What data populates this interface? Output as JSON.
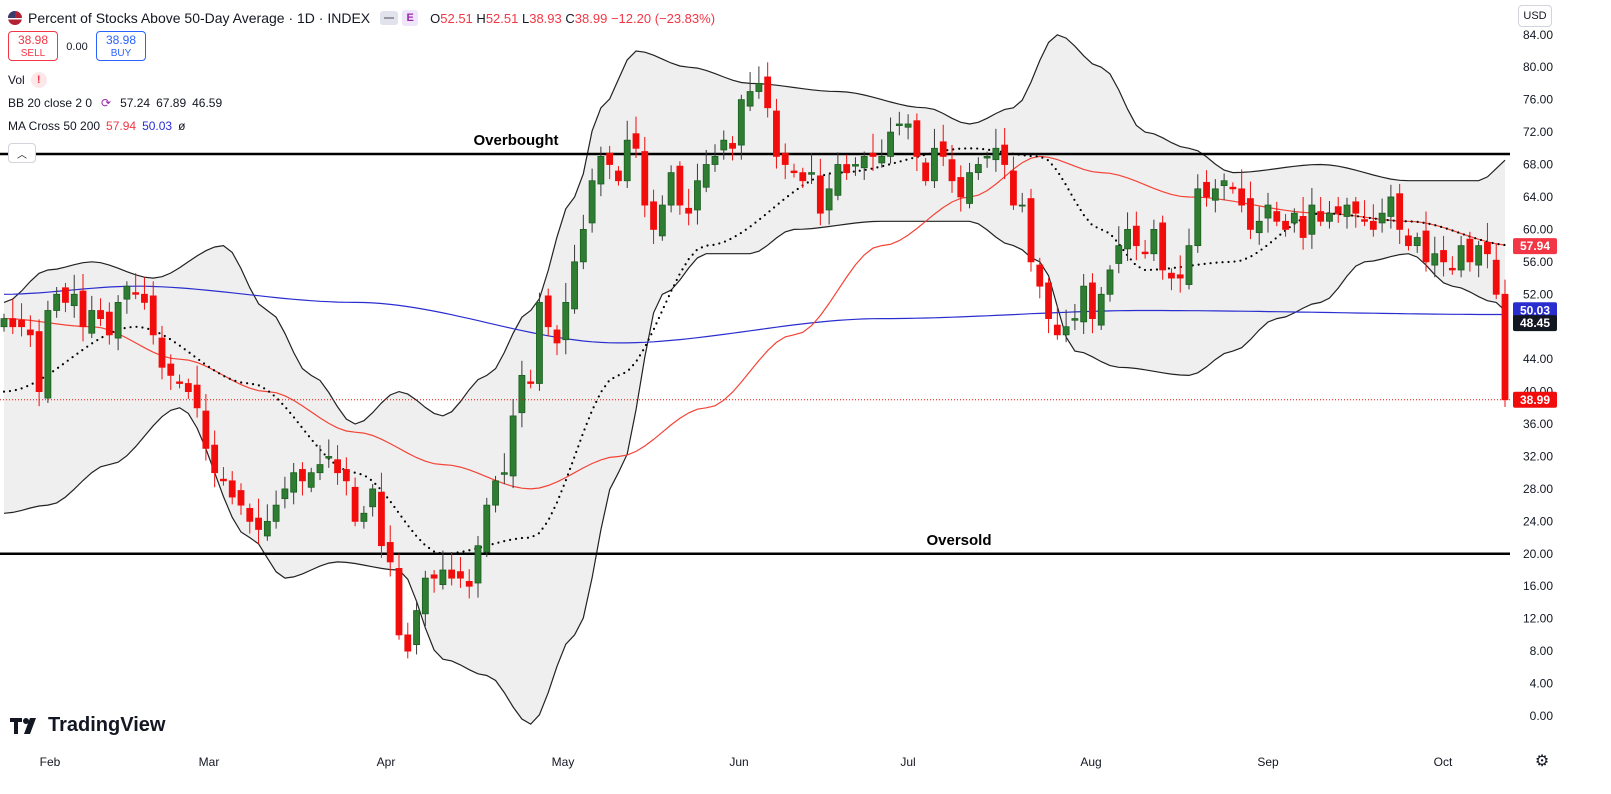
{
  "header": {
    "title": "Percent of Stocks Above 50-Day Average · 1D · INDEX",
    "event_badge": "E",
    "ohlc": {
      "o_label": "O",
      "o": "52.51",
      "h_label": "H",
      "h": "52.51",
      "l_label": "L",
      "l": "38.93",
      "c_label": "C",
      "c": "38.99",
      "change": "−12.20 (−23.83%)"
    },
    "sell_price": "38.98",
    "sell_label": "SELL",
    "spread": "0.00",
    "buy_price": "38.98",
    "buy_label": "BUY"
  },
  "indicators": {
    "vol_label": "Vol",
    "bb_label": "BB 20 close 2 0",
    "bb_basis": "57.24",
    "bb_upper": "67.89",
    "bb_lower": "46.59",
    "ma_label": "MA Cross 50 200",
    "ma_fast": "57.94",
    "ma_slow": "50.03",
    "ma_icon": "ø"
  },
  "currency": "USD",
  "branding": "TradingView",
  "colors": {
    "up": "#2e7d32",
    "down": "#f20d0d",
    "ma50": "#f44336",
    "ma200": "#2a2ecf",
    "bb_fill": "#efefef",
    "bb_line": "#222222",
    "grid_text": "#131722"
  },
  "chart_data": {
    "type": "candlestick",
    "title": "Percent of Stocks Above 50-Day Average",
    "timeframe": "1D",
    "ylim": [
      -2,
      86
    ],
    "y_ticks": [
      "84.00",
      "80.00",
      "76.00",
      "72.00",
      "68.00",
      "64.00",
      "60.00",
      "56.00",
      "52.00",
      "48.00",
      "44.00",
      "40.00",
      "36.00",
      "32.00",
      "28.00",
      "24.00",
      "20.00",
      "16.00",
      "12.00",
      "8.00",
      "4.00",
      "0.00"
    ],
    "x_ticks": [
      "Feb",
      "Mar",
      "Apr",
      "May",
      "Jun",
      "Jul",
      "Aug",
      "Sep",
      "Oct"
    ],
    "hlines": [
      {
        "value": 69.3,
        "label": "Overbought"
      },
      {
        "value": 20,
        "label": "Oversold"
      }
    ],
    "price_labels": [
      {
        "value": 57.94,
        "text": "57.94",
        "color": "#f23645"
      },
      {
        "value": 50.03,
        "text": "50.03",
        "color": "#2a2ecf"
      },
      {
        "value": 48.45,
        "text": "48.45",
        "color": "#131722"
      },
      {
        "value": 38.99,
        "text": "38.99",
        "color": "#f20d0d"
      }
    ],
    "last_close": 38.99,
    "closes": [
      49,
      48,
      48,
      47,
      40,
      50,
      52,
      51,
      52,
      48,
      50,
      49,
      47,
      51,
      53,
      52,
      51,
      47,
      43,
      42,
      41,
      40,
      38,
      33,
      30,
      29,
      27,
      26,
      24,
      23,
      24,
      26,
      28,
      30,
      29,
      30,
      31,
      32,
      30,
      29,
      24,
      25,
      28,
      21,
      19,
      10,
      8,
      13,
      17,
      17,
      18,
      17,
      17,
      16,
      21,
      26,
      29,
      30,
      37,
      42,
      41,
      51,
      48,
      46,
      51,
      56,
      60,
      66,
      69,
      68,
      66,
      71,
      70,
      63,
      60,
      63,
      67,
      63,
      62,
      66,
      68,
      69,
      71,
      70,
      76,
      77,
      78,
      75,
      69,
      68,
      67,
      66,
      67,
      62,
      65,
      68,
      67,
      68,
      69,
      69,
      69,
      72,
      73,
      73,
      69,
      66,
      70,
      69,
      66,
      64,
      67,
      68,
      69,
      70,
      68,
      63,
      63,
      56,
      53,
      49,
      47,
      48,
      49,
      53,
      49,
      52,
      55,
      58,
      60,
      58,
      57,
      60,
      55,
      54,
      54,
      58,
      65,
      64,
      65,
      66,
      65,
      63,
      60,
      61,
      63,
      61,
      60,
      62,
      59,
      63,
      61,
      62,
      62,
      63,
      62,
      61,
      60,
      62,
      64,
      60,
      58,
      59,
      56,
      57,
      56,
      55,
      58,
      56,
      58,
      57,
      52,
      39
    ],
    "series": [
      {
        "name": "MA 50",
        "color": "#f44336",
        "anchors": [
          [
            0,
            49
          ],
          [
            10,
            48
          ],
          [
            20,
            44
          ],
          [
            30,
            40
          ],
          [
            40,
            35
          ],
          [
            50,
            31
          ],
          [
            60,
            28
          ],
          [
            70,
            32
          ],
          [
            80,
            38
          ],
          [
            90,
            47
          ],
          [
            100,
            58
          ],
          [
            110,
            64
          ],
          [
            118,
            69
          ],
          [
            125,
            67
          ],
          [
            135,
            64
          ],
          [
            150,
            62
          ],
          [
            160,
            61
          ],
          [
            172,
            58
          ]
        ]
      },
      {
        "name": "MA 200",
        "color": "#2a2ecf",
        "anchors": [
          [
            0,
            52
          ],
          [
            15,
            53
          ],
          [
            40,
            51
          ],
          [
            70,
            46
          ],
          [
            100,
            49
          ],
          [
            130,
            50
          ],
          [
            172,
            49.5
          ]
        ]
      },
      {
        "name": "BB basis",
        "color": "#000000",
        "anchors": [
          [
            0,
            40
          ],
          [
            15,
            48
          ],
          [
            28,
            41
          ],
          [
            40,
            30
          ],
          [
            50,
            20
          ],
          [
            60,
            22
          ],
          [
            70,
            42
          ],
          [
            80,
            58
          ],
          [
            95,
            67
          ],
          [
            110,
            70
          ],
          [
            118,
            69
          ],
          [
            125,
            60
          ],
          [
            130,
            55
          ],
          [
            140,
            56
          ],
          [
            150,
            62
          ],
          [
            160,
            61
          ],
          [
            172,
            58
          ]
        ]
      },
      {
        "name": "BB upper",
        "color": "#222222",
        "anchors": [
          [
            0,
            51
          ],
          [
            5,
            55
          ],
          [
            10,
            56
          ],
          [
            17,
            54
          ],
          [
            25,
            58
          ],
          [
            30,
            50
          ],
          [
            35,
            42
          ],
          [
            40,
            36
          ],
          [
            45,
            40
          ],
          [
            50,
            37
          ],
          [
            55,
            42
          ],
          [
            60,
            50
          ],
          [
            65,
            64
          ],
          [
            68,
            75
          ],
          [
            72,
            82
          ],
          [
            78,
            80
          ],
          [
            85,
            78
          ],
          [
            95,
            77
          ],
          [
            105,
            75
          ],
          [
            110,
            73
          ],
          [
            115,
            75
          ],
          [
            120,
            84
          ],
          [
            125,
            80
          ],
          [
            130,
            72
          ],
          [
            135,
            70
          ],
          [
            140,
            67
          ],
          [
            150,
            68
          ],
          [
            160,
            66
          ],
          [
            168,
            66
          ],
          [
            172,
            69
          ]
        ]
      },
      {
        "name": "BB lower",
        "color": "#222222",
        "anchors": [
          [
            0,
            25
          ],
          [
            5,
            26
          ],
          [
            12,
            31
          ],
          [
            20,
            38
          ],
          [
            28,
            22
          ],
          [
            32,
            17
          ],
          [
            38,
            19
          ],
          [
            45,
            18
          ],
          [
            50,
            7
          ],
          [
            55,
            5
          ],
          [
            60,
            -1
          ],
          [
            65,
            10
          ],
          [
            70,
            30
          ],
          [
            75,
            52
          ],
          [
            80,
            57
          ],
          [
            85,
            57
          ],
          [
            90,
            60
          ],
          [
            100,
            61
          ],
          [
            110,
            61
          ],
          [
            115,
            58
          ],
          [
            118,
            56
          ],
          [
            122,
            45
          ],
          [
            127,
            43
          ],
          [
            135,
            42
          ],
          [
            140,
            45
          ],
          [
            145,
            49
          ],
          [
            150,
            51
          ],
          [
            155,
            56
          ],
          [
            160,
            57
          ],
          [
            165,
            53
          ],
          [
            170,
            51
          ],
          [
            172,
            49
          ]
        ]
      }
    ]
  }
}
